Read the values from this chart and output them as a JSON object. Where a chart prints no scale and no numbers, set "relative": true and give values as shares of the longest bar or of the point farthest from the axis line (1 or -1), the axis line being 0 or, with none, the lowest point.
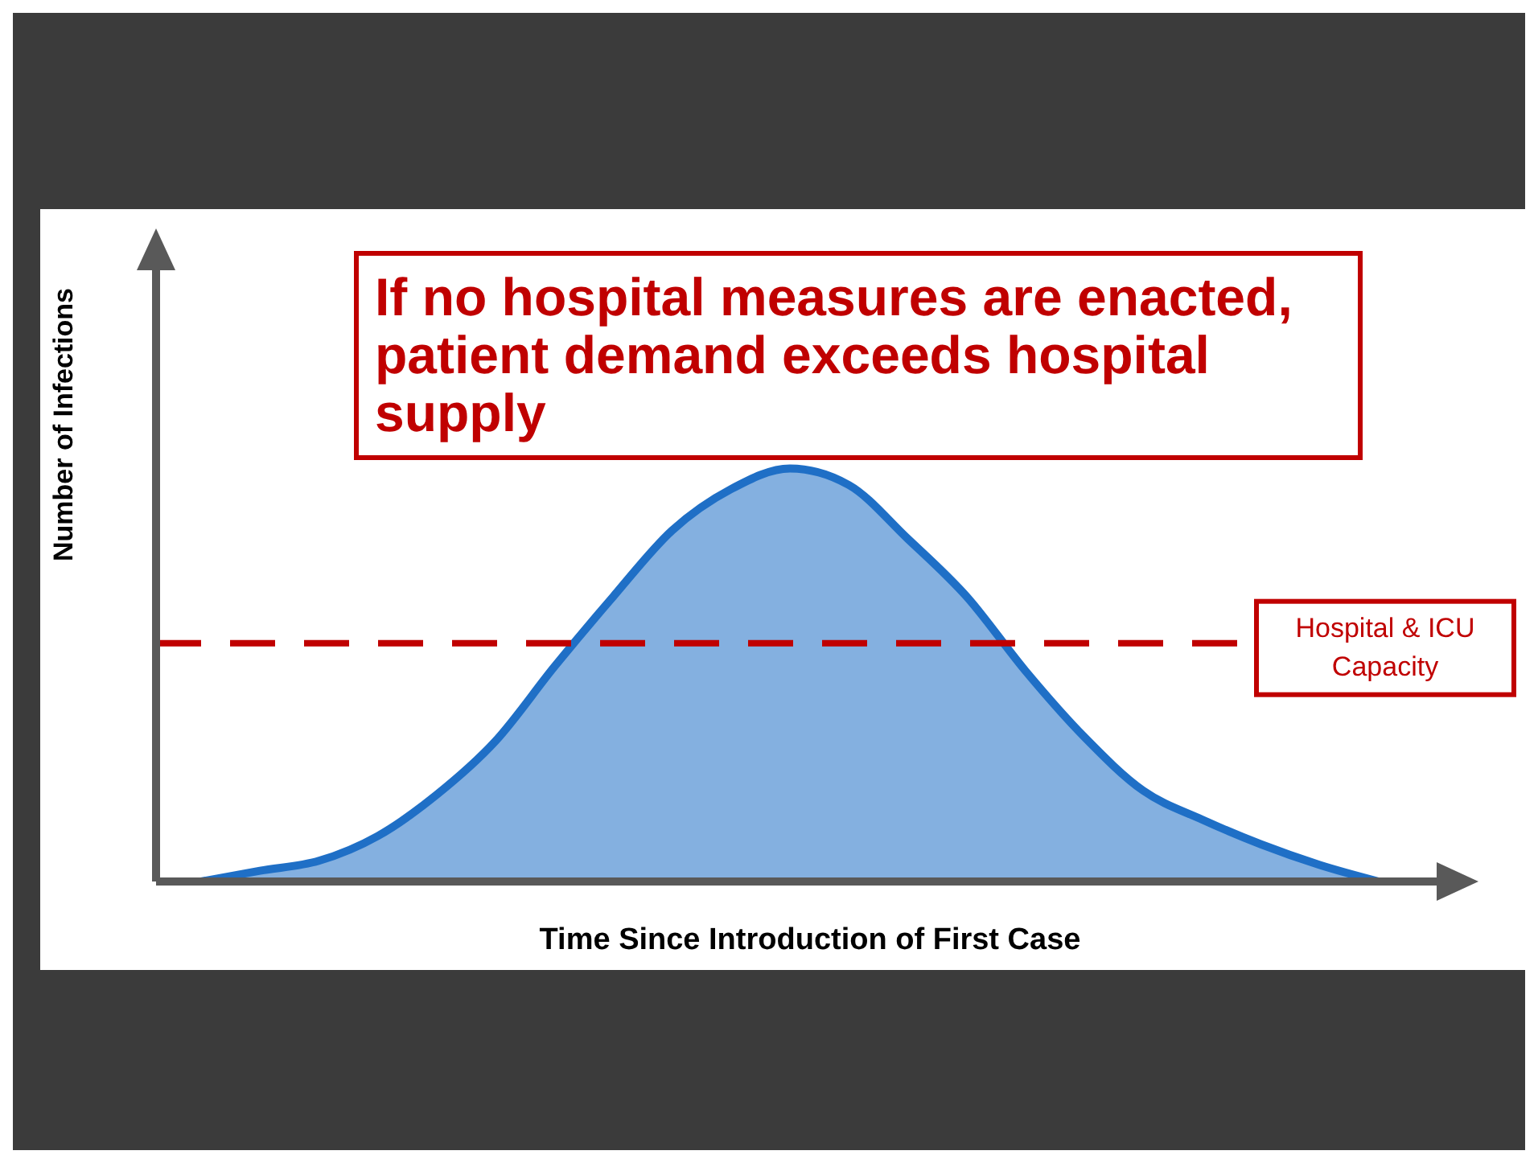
{
  "chart_data": {
    "type": "area",
    "relative": true,
    "xlabel": "Time Since Introduction of First Case",
    "ylabel": "Number of Infections",
    "annotations": [
      "If no hospital measures are enacted, patient demand exceeds hospital supply"
    ],
    "categories": [
      null,
      null,
      null,
      null,
      null,
      null,
      null,
      null,
      null,
      null,
      null,
      null,
      null,
      null,
      null,
      null,
      null,
      null,
      null,
      null,
      null
    ],
    "series": [
      {
        "color": "#1f6fc6",
        "values": [
          0,
          0.026,
          0.05,
          0.11,
          0.21,
          0.34,
          0.52,
          0.69,
          0.85,
          0.95,
          1,
          0.96,
          0.83,
          0.69,
          0.51,
          0.35,
          0.22,
          0.15,
          0.09,
          0.04,
          0
        ]
      }
    ],
    "ref_lines": [
      {
        "axis": "y",
        "value": 0.577,
        "label": "Hospital & ICU Capacity",
        "color": "#c00000",
        "line_style": "dashed"
      }
    ],
    "grid": false,
    "legend": false
  }
}
